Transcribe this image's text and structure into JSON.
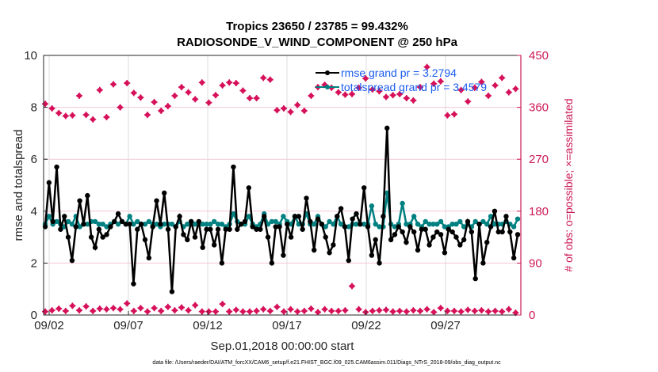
{
  "chart_data": {
    "type": "line",
    "title": [
      "Tropics 23650 / 23785 = 99.432%",
      "RADIOSONDE_V_WIND_COMPONENT @ 250 hPa"
    ],
    "xlabel": "Sep.01,2018 00:00:00 start",
    "ylabel": "rmse and totalspread",
    "y2label": "# of obs: o=possible; ×=assimilated",
    "footer": "data file: /Users/raeder/DAI/ATM_forcXX/CAM6_setup/f.e21.FHIST_BGC.f09_025.CAM6assim.011/Diags_NTrS_2018-09/obs_diag_output.nc",
    "xlim_days": [
      1.65,
      31.75
    ],
    "ylim": [
      0,
      10
    ],
    "y2lim": [
      0,
      450
    ],
    "x_ticks": [
      {
        "day": 2,
        "label": "09/02"
      },
      {
        "day": 7,
        "label": "09/07"
      },
      {
        "day": 12,
        "label": "09/12"
      },
      {
        "day": 17,
        "label": "09/17"
      },
      {
        "day": 22,
        "label": "09/22"
      },
      {
        "day": 27,
        "label": "09/27"
      }
    ],
    "y_ticks": [
      "0",
      "2",
      "4",
      "6",
      "8",
      "10"
    ],
    "y2_ticks": [
      "0",
      "90",
      "180",
      "270",
      "360",
      "450"
    ],
    "grid": true,
    "legend_position": "top-right",
    "colors": {
      "rmse": "#000000",
      "totalspread": "#008080",
      "obs": "#d6115a",
      "axis2": "#cc1955",
      "legend_text": "#1a5cf0"
    },
    "x_start_day": 1.75,
    "x_step_day": 0.5,
    "series": [
      {
        "name": "rmse grand pr = 3.2794",
        "key": "rmse",
        "values": [
          3.4,
          5.1,
          3.6,
          5.7,
          3.3,
          3.8,
          3.0,
          2.1,
          3.4,
          4.4,
          3.5,
          4.6,
          3.0,
          2.6,
          3.3,
          3.0,
          3.1,
          3.4,
          3.6,
          3.9,
          3.6,
          3.5,
          3.5,
          1.2,
          3.3,
          3.5,
          2.9,
          2.2,
          3.4,
          4.4,
          3.5,
          4.7,
          3.3,
          0.9,
          3.4,
          3.8,
          3.1,
          2.9,
          3.6,
          3.0,
          3.6,
          2.6,
          3.3,
          3.3,
          2.7,
          3.3,
          2.0,
          3.3,
          3.3,
          5.7,
          3.3,
          3.5,
          3.6,
          4.9,
          3.4,
          3.3,
          3.3,
          3.8,
          3.0,
          2.0,
          3.4,
          3.4,
          2.3,
          3.5,
          3.0,
          3.8,
          3.8,
          3.3,
          4.5,
          3.6,
          2.5,
          3.7,
          3.5,
          3.0,
          2.4,
          2.7,
          3.8,
          4.1,
          3.4,
          2.1,
          3.7,
          3.9,
          3.5,
          4.9,
          3.4,
          2.3,
          2.9,
          2.0,
          3.8,
          7.2,
          2.9,
          3.1,
          3.4,
          3.2,
          2.8,
          3.4,
          3.2,
          2.5,
          3.3,
          3.3,
          2.7,
          3.0,
          3.2,
          3.1,
          2.4,
          3.3,
          3.2,
          3.0,
          2.7,
          2.9,
          3.6,
          3.2,
          1.4,
          3.5,
          2.0,
          2.8,
          3.4,
          4.0,
          3.2,
          3.2,
          3.8,
          3.2,
          2.2,
          3.1
        ]
      },
      {
        "name": "totalspread grand pr = 3.4579",
        "key": "totalspread",
        "values": [
          3.5,
          3.8,
          3.5,
          3.6,
          3.5,
          3.4,
          3.6,
          3.5,
          3.8,
          3.4,
          3.5,
          3.5,
          3.6,
          3.6,
          3.5,
          3.5,
          3.4,
          3.5,
          3.6,
          3.5,
          3.6,
          3.5,
          3.8,
          3.5,
          3.6,
          3.5,
          3.5,
          3.6,
          3.5,
          3.5,
          3.4,
          3.5,
          3.5,
          3.5,
          3.4,
          3.6,
          3.4,
          3.5,
          3.6,
          3.5,
          3.5,
          3.5,
          3.5,
          3.5,
          3.6,
          3.5,
          3.5,
          3.4,
          3.5,
          3.9,
          3.6,
          3.5,
          3.5,
          3.8,
          3.5,
          3.4,
          3.5,
          3.9,
          3.5,
          3.6,
          3.6,
          3.5,
          3.8,
          3.6,
          3.5,
          3.8,
          3.5,
          3.5,
          3.9,
          3.5,
          3.5,
          3.8,
          3.5,
          3.4,
          3.6,
          3.5,
          3.8,
          3.5,
          3.4,
          3.4,
          3.5,
          3.5,
          3.5,
          3.5,
          3.5,
          4.2,
          3.5,
          3.4,
          3.4,
          4.7,
          3.5,
          3.4,
          3.5,
          4.3,
          3.5,
          3.5,
          3.8,
          3.5,
          3.4,
          3.6,
          3.5,
          3.5,
          3.5,
          3.6,
          3.4,
          3.4,
          3.5,
          3.5,
          3.6,
          3.4,
          3.5,
          3.4,
          3.6,
          3.5,
          3.6,
          3.5,
          3.8,
          3.5,
          3.5,
          3.5,
          3.6,
          3.5,
          3.4,
          3.7
        ]
      },
      {
        "name": "obs possible/assimilated (top)",
        "key": "obs_top",
        "axis": "right",
        "values": [
          366,
          358,
          350,
          345,
          346,
          380,
          347,
          339,
          390,
          343,
          400,
          360,
          402,
          385,
          377,
          347,
          369,
          354,
          362,
          380,
          395,
          386,
          374,
          403,
          368,
          381,
          398,
          403,
          402,
          389,
          376,
          376,
          411,
          408,
          355,
          358,
          352,
          364,
          354,
          380,
          395,
          399,
          394,
          386,
          382,
          383,
          394,
          410,
          391,
          388,
          378,
          381,
          383,
          376,
          372,
          395,
          430,
          401,
          405,
          346,
          348,
          390,
          370,
          394,
          404,
          380,
          398,
          411,
          386,
          392
        ]
      },
      {
        "name": "obs possible/assimilated (bottom)",
        "key": "obs_bottom",
        "axis": "right",
        "values": [
          6,
          8,
          11,
          7,
          16,
          8,
          15,
          7,
          11,
          10,
          12,
          10,
          20,
          7,
          12,
          6,
          12,
          7,
          14,
          8,
          13,
          8,
          17,
          6,
          6,
          6,
          19,
          6,
          9,
          6,
          6,
          7,
          10,
          7,
          14,
          6,
          10,
          6,
          7,
          11,
          5,
          10,
          7,
          7,
          8,
          50,
          10,
          5,
          7,
          8,
          9,
          6,
          7,
          6,
          8,
          7,
          10,
          5,
          12,
          7,
          7,
          6,
          9,
          7,
          8,
          6,
          7,
          6,
          10,
          4
        ]
      }
    ]
  }
}
